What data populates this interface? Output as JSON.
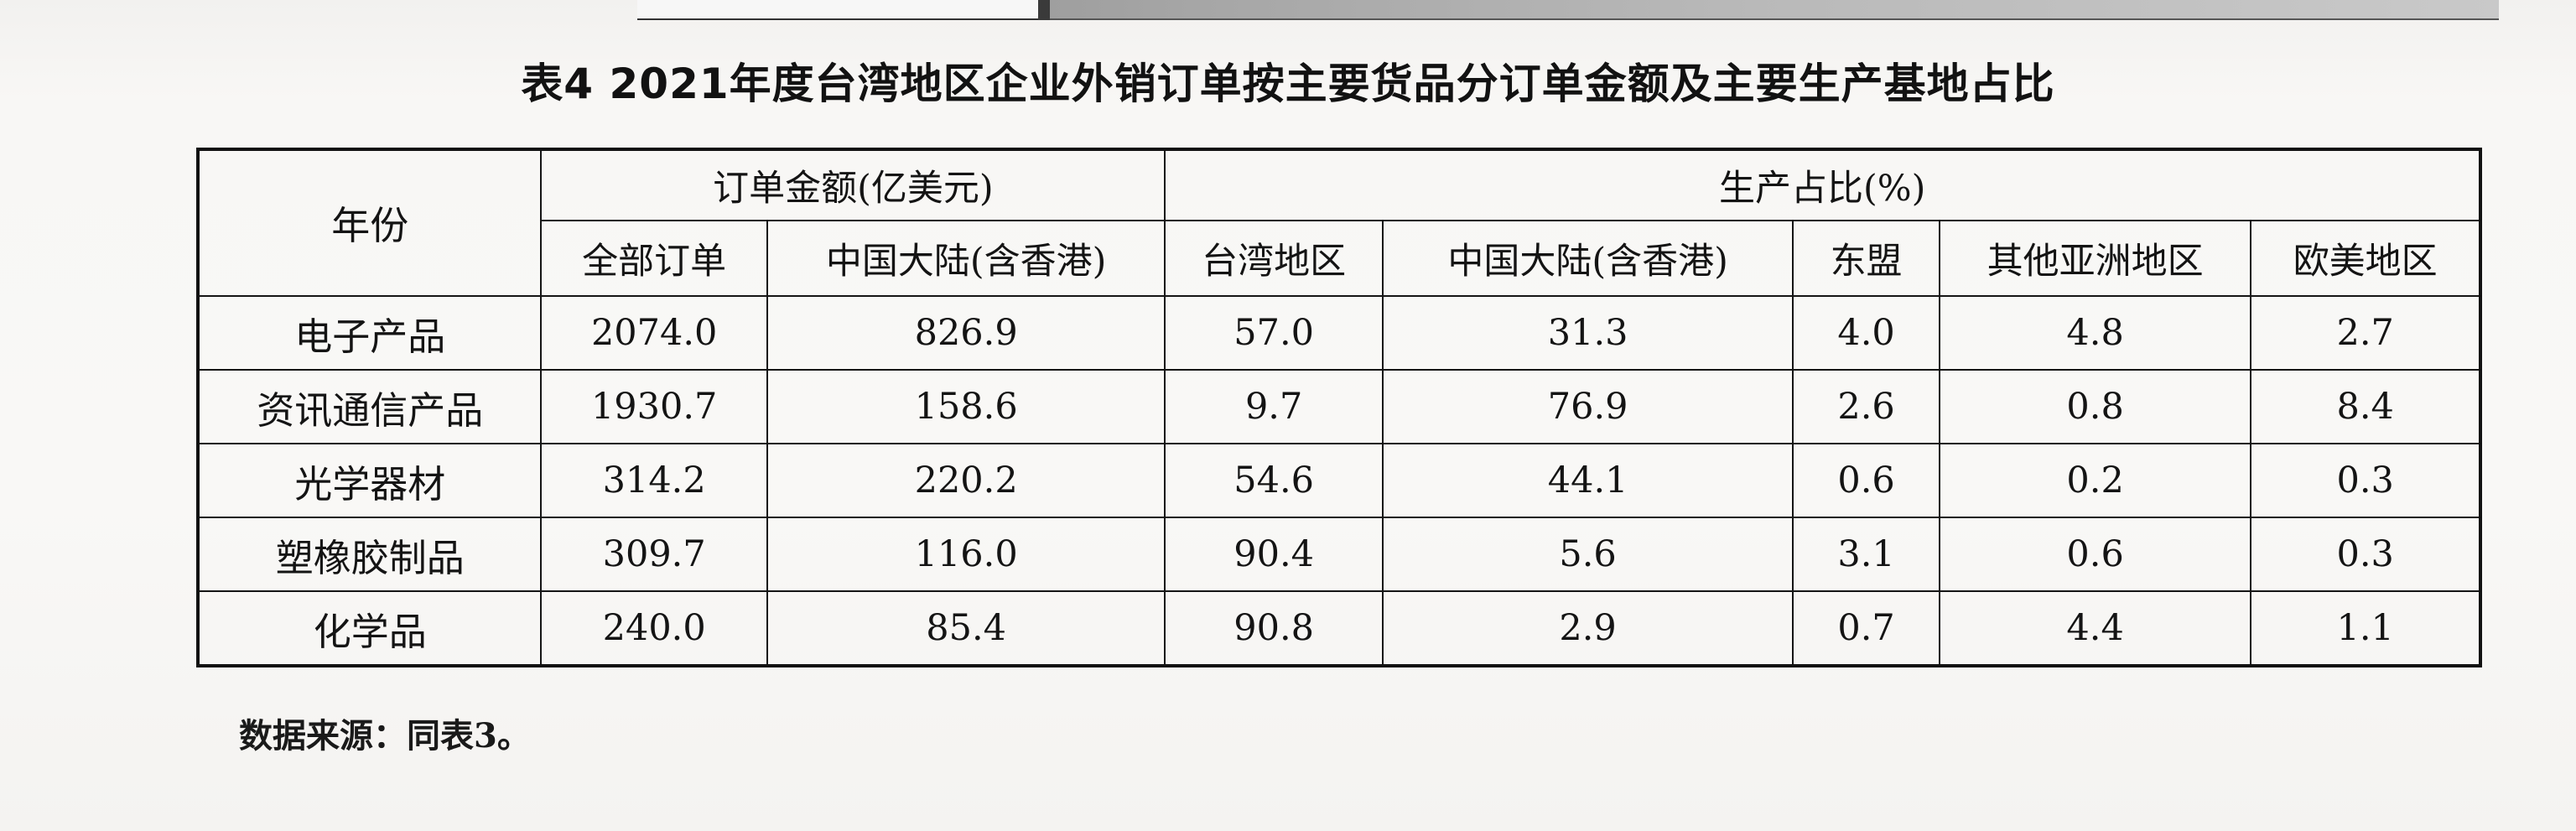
{
  "caption": "表4  2021年度台湾地区企业外销订单按主要货品分订单金额及主要生产基地占比",
  "header": {
    "year": "年份",
    "order_amount_group": "订单金额(亿美元)",
    "production_share_group": "生产占比(%)",
    "columns": [
      "全部订单",
      "中国大陆(含香港)",
      "台湾地区",
      "中国大陆(含香港)",
      "东盟",
      "其他亚洲地区",
      "欧美地区"
    ]
  },
  "rows": [
    {
      "name": "电子产品",
      "values": [
        "2074.0",
        "826.9",
        "57.0",
        "31.3",
        "4.0",
        "4.8",
        "2.7"
      ]
    },
    {
      "name": "资讯通信产品",
      "values": [
        "1930.7",
        "158.6",
        "9.7",
        "76.9",
        "2.6",
        "0.8",
        "8.4"
      ]
    },
    {
      "name": "光学器材",
      "values": [
        "314.2",
        "220.2",
        "54.6",
        "44.1",
        "0.6",
        "0.2",
        "0.3"
      ]
    },
    {
      "name": "塑橡胶制品",
      "values": [
        "309.7",
        "116.0",
        "90.4",
        "5.6",
        "3.1",
        "0.6",
        "0.3"
      ]
    },
    {
      "name": "化学品",
      "values": [
        "240.0",
        "85.4",
        "90.8",
        "2.9",
        "0.7",
        "4.4",
        "1.1"
      ]
    }
  ],
  "footnote": "数据来源：同表3。"
}
